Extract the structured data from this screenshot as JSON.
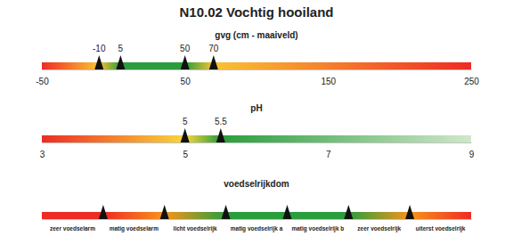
{
  "title": "N10.02 Vochtig hooiland",
  "chart_data": [
    {
      "type": "range_bar",
      "title": "gvg (cm - maaiveld)",
      "xlim": [
        -50,
        250
      ],
      "xticks": [
        -50,
        50,
        150,
        250
      ],
      "markers": [
        -10,
        5,
        50,
        70
      ],
      "data_labels": true,
      "colors": [
        "#ee2b24",
        "#f9c334",
        "#2a9d3c",
        "#2a9d3c",
        "#f9c334",
        "#ee2b24"
      ]
    },
    {
      "type": "range_bar",
      "title": "pH",
      "xlim": [
        3,
        9
      ],
      "xticks": [
        3,
        5,
        7,
        9
      ],
      "markers": [
        5,
        5.5
      ],
      "data_labels": true,
      "colors": [
        "#ee2b24",
        "#f9d63a",
        "#2a9d3c",
        "#cfe8c9"
      ]
    },
    {
      "type": "range_bar",
      "title": "voedselrijkdom",
      "xlim": [
        0,
        7
      ],
      "categories": [
        "zeer voedselarm",
        "matig voedselarm",
        "licht voedselrijk",
        "matig voedselrijk a",
        "matig voedselrijk b",
        "zeer voedselrijk",
        "uiterst voedselrijk"
      ],
      "markers": [
        1,
        2,
        3,
        4,
        5,
        6
      ],
      "data_labels": false,
      "colors": [
        "#ee2b24",
        "#ee2b24",
        "#f7941d",
        "#2a9d3c",
        "#2a9d3c",
        "#2a9d3c",
        "#f7941d",
        "#ee2b24"
      ]
    }
  ]
}
